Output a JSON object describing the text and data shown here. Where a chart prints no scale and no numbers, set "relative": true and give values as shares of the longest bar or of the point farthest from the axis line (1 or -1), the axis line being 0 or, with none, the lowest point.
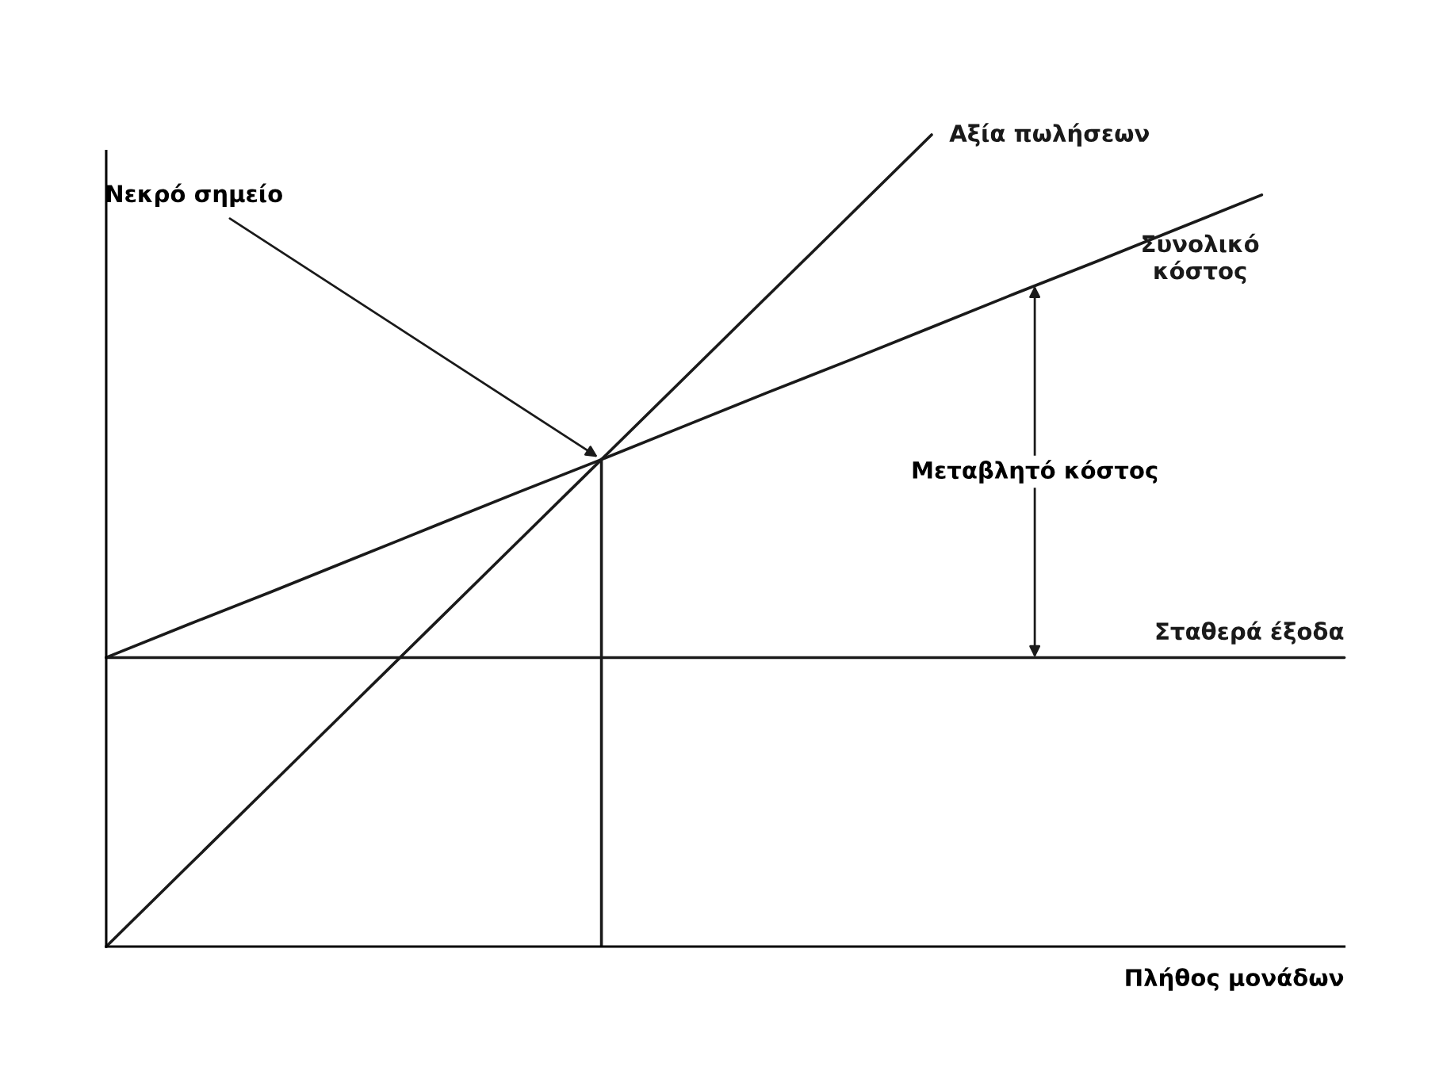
{
  "chart_data": {
    "type": "line",
    "relative": true,
    "xlabel": "Πλήθος μονάδων",
    "legend": false,
    "marker": "none",
    "line_style": "solid",
    "categories": [
      null,
      null,
      null,
      null,
      null,
      null,
      null,
      null,
      null,
      null,
      null,
      null,
      null,
      null,
      null,
      null
    ],
    "series": [
      {
        "name": "Αξία πωλήσεων",
        "color": "#1a1a1a",
        "values": [
          0,
          0.1,
          0.2,
          0.3,
          0.4,
          0.5,
          0.6,
          0.7,
          0.8,
          0.9,
          1.0,
          null,
          null,
          null,
          null,
          null
        ]
      },
      {
        "name": "Συνολικό κόστος",
        "color": "#1a1a1a",
        "values": [
          0.356,
          0.397,
          0.437,
          0.478,
          0.519,
          0.56,
          0.6,
          0.641,
          0.682,
          0.722,
          0.763,
          0.804,
          0.844,
          0.885,
          0.926,
          null
        ]
      },
      {
        "name": "Σταθερά έξοδα",
        "color": "#1a1a1a",
        "values": [
          0.356,
          0.356,
          0.356,
          0.356,
          0.356,
          0.356,
          0.356,
          0.356,
          0.356,
          0.356,
          0.356,
          0.356,
          0.356,
          0.356,
          0.356,
          0.356
        ]
      }
    ],
    "annotations": [
      "Νεκρό σημείο",
      "Μεταβλητό κόστος"
    ]
  }
}
